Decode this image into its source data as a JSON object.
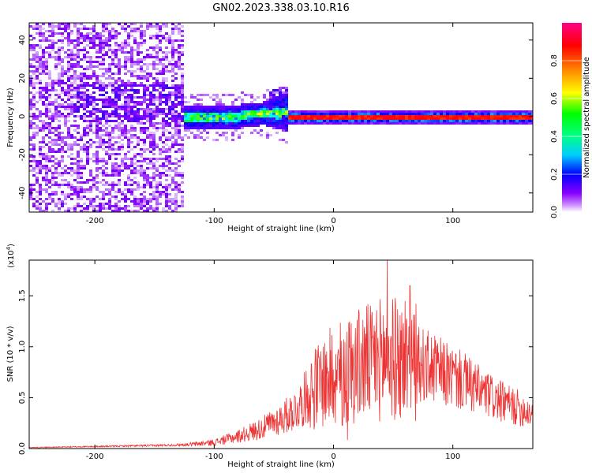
{
  "figure_title": "GN02.2023.338.03.10.R16",
  "chart_data": [
    {
      "type": "heatmap",
      "title": "",
      "xlabel": "Height of straight line (km)",
      "ylabel": "Frequency (Hz)",
      "xlim": [
        -255,
        167
      ],
      "ylim": [
        -50,
        49
      ],
      "x_ticks": [
        -200,
        -100,
        0,
        100
      ],
      "y_ticks": [
        -40,
        -20,
        0,
        20,
        40
      ],
      "colorbar": {
        "label": "Normalized spectral amplitude",
        "range": [
          0,
          1
        ],
        "ticks": [
          "0.0",
          "0.2",
          "0.4",
          "0.6",
          "0.8"
        ],
        "colormap": [
          "#ffffff",
          "#8800ff",
          "#0000ff",
          "#00ffff",
          "#00ff00",
          "#ffff00",
          "#ff8800",
          "#ff0000",
          "#ff0088"
        ]
      },
      "regions": [
        {
          "x_range": [
            -255,
            -128
          ],
          "freq_spread_hz": 50,
          "amplitude": 0.1
        },
        {
          "x_range": [
            -128,
            -40
          ],
          "freq_spread_hz": 12,
          "amplitude": 0.35
        },
        {
          "x_range": [
            -40,
            167
          ],
          "freq_center_hz": 0,
          "freq_spread_hz": 3,
          "amplitude": 0.85
        }
      ]
    },
    {
      "type": "line",
      "title": "",
      "xlabel": "Height of straight line (km)",
      "ylabel": "SNR (10 * v/v)",
      "y_scale_label": "(x10",
      "y_scale_exp": "4",
      "y_scale_close": ")",
      "xlim": [
        -255,
        167
      ],
      "ylim": [
        0,
        1.85
      ],
      "x_ticks": [
        -200,
        -100,
        0,
        100
      ],
      "y_ticks": [
        "0.0",
        "0.5",
        "1.0",
        "1.5"
      ],
      "color": "#ee3333",
      "series": [
        {
          "x": [
            -255,
            -200,
            -150,
            -120,
            -100,
            -80,
            -60,
            -40,
            -30,
            -20,
            -10,
            0,
            10,
            20,
            30,
            40,
            45,
            50,
            60,
            70,
            80,
            90,
            100,
            110,
            120,
            130,
            140,
            150,
            160,
            167
          ],
          "y": [
            0.01,
            0.02,
            0.03,
            0.04,
            0.06,
            0.12,
            0.2,
            0.32,
            0.4,
            0.55,
            0.65,
            0.72,
            0.78,
            0.82,
            0.85,
            0.88,
            0.9,
            0.88,
            0.86,
            0.84,
            0.8,
            0.75,
            0.7,
            0.65,
            0.58,
            0.52,
            0.46,
            0.42,
            0.38,
            0.35
          ]
        }
      ],
      "peaks": [
        {
          "x": 45,
          "y": 1.85
        },
        {
          "x": 32,
          "y": 1.3
        },
        {
          "x": 64,
          "y": 1.6
        },
        {
          "x": 60,
          "y": 1.45
        },
        {
          "x": 63,
          "y": 1.2
        }
      ]
    }
  ]
}
